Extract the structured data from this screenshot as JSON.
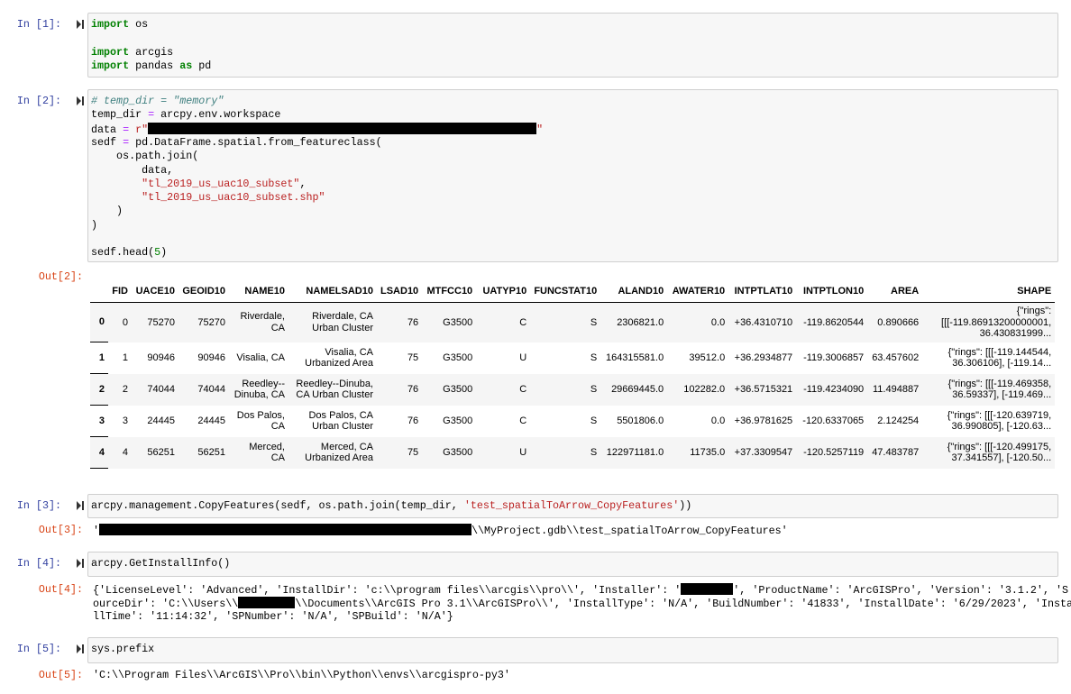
{
  "cells": [
    {
      "prompt": "In [1]:",
      "lines": [
        [
          {
            "t": "import",
            "c": "#008000",
            "style": "bold"
          },
          " os"
        ],
        [],
        [
          {
            "t": "import",
            "c": "#008000",
            "style": "bold"
          },
          " arcgis"
        ],
        [
          {
            "t": "import",
            "c": "#008000",
            "style": "bold"
          },
          " pandas ",
          {
            "t": "as",
            "c": "#008000",
            "style": "bold"
          },
          " pd"
        ]
      ]
    },
    {
      "prompt": "In [2]:",
      "lines": [
        [
          {
            "t": "# temp_dir = \"memory\"",
            "c": "#408080",
            "style": "italic"
          }
        ],
        [
          "temp_dir ",
          {
            "t": "=",
            "c": "#aa22ff"
          },
          " arcpy.env.workspace"
        ],
        [
          "data ",
          {
            "t": "=",
            "c": "#aa22ff"
          },
          " ",
          {
            "t": "r\"",
            "c": "#ba2121"
          },
          null,
          {
            "t": "\"",
            "c": "#ba2121"
          }
        ],
        [
          "sedf ",
          {
            "t": "=",
            "c": "#aa22ff"
          },
          " pd.DataFrame.spatial.from_featureclass("
        ],
        [
          "    os.path.join("
        ],
        [
          "        data,"
        ],
        [
          "        ",
          {
            "t": "\"tl_2019_us_uac10_subset\"",
            "c": "#ba2121"
          },
          ","
        ],
        [
          "        ",
          {
            "t": "\"tl_2019_us_uac10_subset.shp\"",
            "c": "#ba2121"
          }
        ],
        [
          "    )"
        ],
        [
          ")"
        ],
        [],
        [
          "sedf.head(",
          {
            "t": "5",
            "c": "#008000"
          },
          ")"
        ]
      ],
      "out_prompt": "Out[2]:",
      "table": {
        "headers": [
          "FID",
          "UACE10",
          "GEOID10",
          "NAME10",
          "NAMELSAD10",
          "LSAD10",
          "MTFCC10",
          "UATYP10",
          "FUNCSTAT10",
          "ALAND10",
          "AWATER10",
          "INTPTLAT10",
          "INTPTLON10",
          "AREA",
          "SHAPE"
        ],
        "index": [
          "0",
          "1",
          "2",
          "3",
          "4"
        ],
        "rows": [
          [
            "0",
            "75270",
            "75270",
            "Riverdale, CA",
            "Riverdale, CA Urban Cluster",
            "76",
            "G3500",
            "C",
            "S",
            "2306821.0",
            "0.0",
            "+36.4310710",
            "-119.8620544",
            "0.890666",
            "{\"rings\": [[[-119.86913200000001, 36.430831999..."
          ],
          [
            "1",
            "90946",
            "90946",
            "Visalia, CA",
            "Visalia, CA Urbanized Area",
            "75",
            "G3500",
            "U",
            "S",
            "164315581.0",
            "39512.0",
            "+36.2934877",
            "-119.3006857",
            "63.457602",
            "{\"rings\": [[[-119.144544, 36.306106], [-119.14..."
          ],
          [
            "2",
            "74044",
            "74044",
            "Reedley--Dinuba, CA",
            "Reedley--Dinuba, CA Urban Cluster",
            "76",
            "G3500",
            "C",
            "S",
            "29669445.0",
            "102282.0",
            "+36.5715321",
            "-119.4234090",
            "11.494887",
            "{\"rings\": [[[-119.469358, 36.59337], [-119.469..."
          ],
          [
            "3",
            "24445",
            "24445",
            "Dos Palos, CA",
            "Dos Palos, CA Urban Cluster",
            "76",
            "G3500",
            "C",
            "S",
            "5501806.0",
            "0.0",
            "+36.9781625",
            "-120.6337065",
            "2.124254",
            "{\"rings\": [[[-120.639719, 36.990805], [-120.63..."
          ],
          [
            "4",
            "56251",
            "56251",
            "Merced, CA",
            "Merced, CA Urbanized Area",
            "75",
            "G3500",
            "U",
            "S",
            "122971181.0",
            "11735.0",
            "+37.3309547",
            "-120.5257119",
            "47.483787",
            "{\"rings\": [[[-120.499175, 37.341557], [-120.50..."
          ]
        ]
      }
    },
    {
      "prompt": "In [3]:",
      "lines": [
        [
          "arcpy.management.CopyFeatures(sedf, os.path.join(temp_dir, ",
          {
            "t": "'test_spatialToArrow_CopyFeatures'",
            "c": "#ba2121"
          },
          "))"
        ]
      ],
      "out_prompt": "Out[3]:",
      "output_lines": [
        [
          "'",
          null,
          "\\\\MyProject.gdb\\\\test_spatialToArrow_CopyFeatures'"
        ]
      ]
    },
    {
      "prompt": "In [4]:",
      "lines": [
        [
          "arcpy.GetInstallInfo()"
        ]
      ],
      "out_prompt": "Out[4]:",
      "output_lines": [
        [
          "{'LicenseLevel': 'Advanced', 'InstallDir': 'c:\\\\program files\\\\arcgis\\\\pro\\\\', 'Installer': '",
          null,
          "', 'ProductName': 'ArcGISPro', 'Version': '3.1.2', 'S"
        ],
        [
          "ourceDir': 'C:\\\\Users\\\\",
          null,
          "\\\\Documents\\\\ArcGIS Pro 3.1\\\\ArcGISPro\\\\', 'InstallType': 'N/A', 'BuildNumber': '41833', 'InstallDate': '6/29/2023', 'Insta"
        ],
        [
          "llTime': '11:14:32', 'SPNumber': 'N/A', 'SPBuild': 'N/A'}"
        ]
      ]
    },
    {
      "prompt": "In [5]:",
      "lines": [
        [
          "sys.prefix"
        ]
      ],
      "out_prompt": "Out[5]:",
      "output_lines": [
        [
          "'C:\\\\Program Files\\\\ArcGIS\\\\Pro\\\\bin\\\\Python\\\\envs\\\\arcgispro-py3'"
        ]
      ]
    }
  ]
}
